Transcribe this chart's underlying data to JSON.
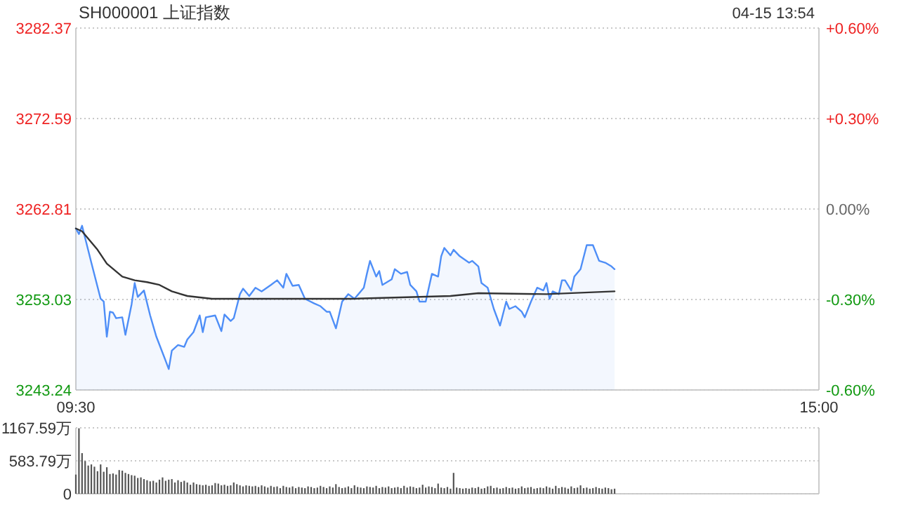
{
  "chart_data": [
    {
      "type": "line",
      "title": "SH000001 上证指数",
      "annotations": [
        "04-15 13:54"
      ],
      "categories": [
        "09:30",
        null,
        null,
        null,
        null,
        null,
        null,
        null,
        null,
        null,
        null,
        null,
        null,
        null,
        null,
        null,
        null,
        null,
        null,
        null,
        null,
        null,
        null,
        null,
        null,
        null,
        null,
        null,
        null,
        null,
        null,
        null,
        null,
        null,
        null,
        null,
        null,
        null,
        null,
        null,
        null,
        null,
        null,
        null,
        null,
        null,
        null,
        null,
        null,
        null,
        null,
        null,
        null,
        null,
        null,
        null,
        null,
        null,
        null,
        null,
        null,
        null,
        null,
        null,
        null,
        null,
        null,
        null,
        null,
        null,
        null,
        null,
        null,
        null,
        null,
        null,
        null,
        null,
        null,
        null,
        null,
        null,
        null,
        null,
        null,
        null,
        null,
        null,
        null,
        null,
        null,
        null,
        null,
        null,
        null,
        null,
        null,
        null,
        null,
        null,
        null,
        null,
        null,
        null,
        null,
        null,
        null,
        null,
        null,
        null,
        null,
        null,
        null,
        null,
        null,
        null,
        null,
        null,
        null,
        null,
        null,
        null,
        null,
        null,
        null,
        null,
        null,
        null,
        null,
        null,
        null,
        null,
        null,
        null,
        null,
        null,
        null,
        null,
        null,
        null,
        null,
        null,
        null,
        null,
        null,
        null,
        null,
        null,
        null,
        null,
        null,
        null,
        null,
        null,
        null,
        null,
        null,
        null,
        null,
        null,
        null,
        null,
        null,
        null,
        null,
        null,
        null,
        null,
        null,
        null,
        null,
        null,
        null,
        null,
        null,
        null,
        null,
        null,
        null,
        null,
        null,
        null,
        null,
        null,
        null,
        null,
        null,
        null,
        null,
        null,
        null,
        null,
        null,
        null,
        null,
        null,
        null,
        null,
        null,
        null,
        null,
        null,
        null,
        null,
        null,
        null,
        null,
        null,
        null,
        null,
        null,
        null,
        null,
        null,
        null,
        null,
        null,
        null,
        null,
        null,
        null,
        null,
        null,
        null,
        null,
        null,
        null,
        null,
        null,
        null,
        null,
        null,
        null,
        null,
        null,
        null,
        null,
        null,
        null,
        null,
        "15:00"
      ],
      "ylim": [
        3243.24,
        3282.37
      ],
      "yticks": [
        3243.24,
        3253.03,
        3262.81,
        3272.59,
        3282.37
      ],
      "y2lim": [
        -0.6,
        0.6
      ],
      "y2ticks": [
        {
          "value": -0.6,
          "label": "-0.60%"
        },
        {
          "value": -0.3,
          "label": "-0.30%"
        },
        {
          "value": 0,
          "label": "0.00%"
        },
        {
          "value": 0.3,
          "label": "+0.30%"
        },
        {
          "value": 0.6,
          "label": "+0.60%"
        }
      ],
      "grid": "y",
      "series": [
        {
          "type": "area",
          "color": "#4e8ef7",
          "values": [
            3260.7,
            3260.1,
            3261.0,
            null,
            null,
            3257.0,
            null,
            null,
            3253.1,
            3252.8,
            3249.0,
            3251.7,
            3251.6,
            3251.0,
            null,
            3251.1,
            3249.2,
            null,
            3252.5,
            3254.8,
            3253.3,
            null,
            3254.0,
            null,
            3251.3,
            null,
            3249.0,
            null,
            null,
            3246.4,
            3245.5,
            3247.5,
            null,
            3248.1,
            null,
            3247.9,
            3248.7,
            null,
            3249.5,
            null,
            3251.3,
            3249.5,
            3251.1,
            null,
            null,
            3251.3,
            null,
            3249.6,
            3251.4,
            null,
            3250.7,
            3251.0,
            null,
            3253.6,
            3254.2,
            null,
            3253.4,
            null,
            3254.3,
            null,
            3253.9,
            null,
            null,
            3254.6,
            null,
            3255.1,
            null,
            3254.3,
            3255.8,
            null,
            3254.5,
            null,
            3254.6,
            null,
            3253.1,
            null,
            null,
            3252.6,
            null,
            3252.3,
            null,
            3251.7,
            3251.7,
            null,
            3249.9,
            null,
            3252.8,
            null,
            3253.6,
            null,
            3253.1,
            null,
            null,
            3254.3,
            3255.8,
            3257.2,
            null,
            3255.5,
            3256.1,
            3254.6,
            null,
            null,
            3255.2,
            3256.3,
            null,
            3255.8,
            null,
            3256.0,
            3254.6,
            null,
            3253.9,
            3252.8,
            null,
            3252.8,
            3254.3,
            3255.8,
            null,
            3255.5,
            3257.7,
            3258.6,
            null,
            3257.8,
            3258.4,
            null,
            3257.7,
            null,
            null,
            3257.0,
            3257.2,
            null,
            3256.6,
            3254.8,
            null,
            3254.3,
            null,
            3252.0,
            null,
            3250.2,
            null,
            3252.8,
            3252.0,
            null,
            3252.3,
            null,
            3251.7,
            3251.1,
            null,
            3252.8,
            null,
            3254.3,
            null,
            3254.0,
            3254.8,
            3253.1,
            3253.9,
            null,
            3253.6,
            3255.1,
            3255.1,
            null,
            3254.0,
            3255.5,
            null,
            3256.3,
            null,
            3258.9,
            null,
            3258.9,
            null,
            3257.2,
            null,
            3257.0,
            null,
            3256.6,
            3256.3,
            null,
            null,
            null,
            null,
            null,
            null,
            null,
            null,
            null,
            null,
            null,
            null,
            null,
            null,
            null,
            null,
            null,
            null,
            null,
            null,
            null,
            null,
            null,
            null,
            null,
            null,
            null,
            null,
            null,
            null,
            null,
            null,
            null,
            null,
            null,
            null,
            null,
            null,
            null,
            null,
            null,
            null,
            null,
            null,
            null,
            null,
            null,
            null,
            null,
            null,
            null,
            null,
            null,
            null,
            null,
            null,
            null,
            null,
            null,
            null,
            null,
            null,
            null,
            null,
            null,
            null
          ]
        },
        {
          "type": "line",
          "color": "#333333",
          "values": [
            3260.7,
            null,
            3260.4,
            null,
            null,
            null,
            null,
            3258.4,
            null,
            null,
            3256.9,
            null,
            null,
            null,
            null,
            3255.5,
            null,
            null,
            null,
            3255.1,
            null,
            null,
            null,
            3254.9,
            null,
            null,
            null,
            3254.6,
            null,
            null,
            null,
            3253.9,
            null,
            null,
            null,
            null,
            3253.4,
            null,
            null,
            null,
            null,
            null,
            null,
            null,
            3253.1,
            null,
            null,
            null,
            null,
            null,
            null,
            null,
            null,
            3253.1,
            null,
            null,
            null,
            null,
            null,
            null,
            null,
            null,
            null,
            null,
            null,
            null,
            3253.1,
            null,
            null,
            null,
            null,
            null,
            null,
            null,
            null,
            null,
            null,
            null,
            null,
            null,
            null,
            null,
            null,
            null,
            null,
            null,
            null,
            null,
            null,
            3253.1,
            null,
            null,
            null,
            null,
            null,
            null,
            null,
            null,
            null,
            null,
            null,
            null,
            null,
            null,
            null,
            null,
            null,
            null,
            null,
            null,
            null,
            null,
            null,
            null,
            null,
            null,
            null,
            null,
            null,
            null,
            null,
            3253.4,
            null,
            null,
            null,
            null,
            null,
            null,
            null,
            null,
            3253.7,
            null,
            null,
            null,
            null,
            null,
            null,
            null,
            null,
            null,
            null,
            null,
            null,
            null,
            null,
            null,
            null,
            null,
            null,
            null,
            null,
            null,
            3253.6,
            null,
            null,
            null,
            null,
            null,
            null,
            null,
            null,
            null,
            null,
            null,
            null,
            null,
            null,
            null,
            null,
            null,
            null,
            null,
            null,
            null,
            3253.9,
            null,
            null,
            null,
            null,
            null,
            null,
            null,
            null,
            null,
            null,
            null,
            null,
            null,
            null,
            null,
            null,
            null,
            null,
            null,
            null,
            null,
            null,
            null,
            null,
            null,
            null,
            null,
            null,
            null,
            null,
            null,
            null,
            null,
            null,
            null,
            null,
            null,
            null,
            null,
            null,
            null,
            null,
            null,
            null,
            null,
            null,
            null,
            null,
            null,
            null,
            null,
            null,
            null,
            null,
            null,
            null,
            null,
            null,
            null,
            null,
            null,
            null,
            null,
            null,
            null,
            null
          ]
        }
      ]
    },
    {
      "type": "bar",
      "color": "#555555",
      "grid": "y",
      "categories": [
        null,
        null,
        null,
        null,
        null,
        null,
        null,
        null,
        null,
        null,
        null,
        null,
        null,
        null,
        null,
        null,
        null,
        null,
        null,
        null,
        null,
        null,
        null,
        null,
        null,
        null,
        null,
        null,
        null,
        null,
        null,
        null,
        null,
        null,
        null,
        null,
        null,
        null,
        null,
        null,
        null,
        null,
        null,
        null,
        null,
        null,
        null,
        null,
        null,
        null,
        null,
        null,
        null,
        null,
        null,
        null,
        null,
        null,
        null,
        null,
        null,
        null,
        null,
        null,
        null,
        null,
        null,
        null,
        null,
        null,
        null,
        null,
        null,
        null,
        null,
        null,
        null,
        null,
        null,
        null,
        null,
        null,
        null,
        null,
        null,
        null,
        null,
        null,
        null,
        null,
        null,
        null,
        null,
        null,
        null,
        null,
        null,
        null,
        null,
        null,
        null,
        null,
        null,
        null,
        null,
        null,
        null,
        null,
        null,
        null,
        null,
        null,
        null,
        null,
        null,
        null,
        null,
        null,
        null,
        null,
        null,
        null,
        null,
        null,
        null,
        null,
        null,
        null,
        null,
        null,
        null,
        null,
        null,
        null,
        null,
        null,
        null,
        null,
        null,
        null,
        null,
        null,
        null,
        null,
        null,
        null,
        null,
        null,
        null,
        null,
        null,
        null,
        null,
        null,
        null,
        null,
        null,
        null,
        null,
        null,
        null,
        null,
        null,
        null,
        null,
        null,
        null,
        null,
        null,
        null,
        null,
        null,
        null,
        null,
        null,
        null,
        null,
        null,
        null,
        null,
        null,
        null,
        null,
        null,
        null,
        null,
        null,
        null,
        null,
        null,
        null,
        null,
        null,
        null,
        null,
        null,
        null,
        null,
        null,
        null,
        null,
        null,
        null,
        null,
        null,
        null,
        null,
        null,
        null,
        null,
        null,
        null,
        null,
        null,
        null,
        null,
        null,
        null,
        null,
        null,
        null,
        null,
        null,
        null,
        null,
        null,
        null,
        null,
        null,
        null,
        null,
        null,
        null,
        null,
        null,
        null,
        null,
        null,
        null,
        null,
        null
      ],
      "ylim": [
        0,
        1167.59
      ],
      "yticks": [
        0,
        {
          "value": 583.79,
          "label": "583.79万"
        },
        {
          "value": 1167.59,
          "label": "1167.59万"
        }
      ],
      "values": [
        340,
        1160,
        720,
        580,
        500,
        520,
        480,
        400,
        520,
        390,
        470,
        350,
        360,
        340,
        420,
        410,
        370,
        350,
        330,
        320,
        280,
        290,
        260,
        240,
        220,
        230,
        200,
        250,
        290,
        230,
        250,
        260,
        200,
        240,
        210,
        230,
        200,
        160,
        200,
        170,
        160,
        150,
        160,
        140,
        150,
        190,
        180,
        150,
        160,
        140,
        150,
        200,
        170,
        150,
        130,
        150,
        140,
        130,
        140,
        120,
        150,
        130,
        110,
        140,
        120,
        130,
        100,
        140,
        120,
        110,
        130,
        100,
        120,
        110,
        100,
        130,
        120,
        100,
        110,
        140,
        120,
        100,
        130,
        110,
        170,
        120,
        100,
        110,
        130,
        100,
        150,
        120,
        110,
        100,
        130,
        120,
        110,
        140,
        100,
        120,
        110,
        130,
        100,
        110,
        120,
        100,
        140,
        110,
        130,
        120,
        100,
        110,
        160,
        110,
        130,
        120,
        100,
        180,
        110,
        100,
        120,
        90,
        370,
        110,
        100,
        90,
        100,
        90,
        110,
        100,
        120,
        90,
        100,
        130,
        140,
        100,
        110,
        90,
        100,
        120,
        100,
        110,
        90,
        100,
        130,
        100,
        110,
        120,
        90,
        100,
        110,
        100,
        130,
        110,
        90,
        140,
        100,
        120,
        110,
        90,
        130,
        100,
        110,
        150,
        100,
        110,
        90,
        100,
        120,
        100,
        90,
        110,
        100,
        80,
        90,
        null,
        null,
        null,
        null,
        null,
        null,
        null,
        null,
        null,
        null,
        null,
        null,
        null,
        null,
        null,
        null,
        null,
        null,
        null,
        null,
        null,
        null,
        null,
        null,
        null,
        null,
        null,
        null,
        null,
        null,
        null,
        null,
        null,
        null,
        null,
        null,
        null,
        null,
        null,
        null,
        null,
        null,
        null,
        null,
        null,
        null,
        null,
        null,
        null,
        null,
        null,
        null,
        null,
        null,
        null,
        null,
        null,
        null,
        null,
        null,
        null,
        null,
        null,
        null,
        null,
        null
      ]
    }
  ]
}
